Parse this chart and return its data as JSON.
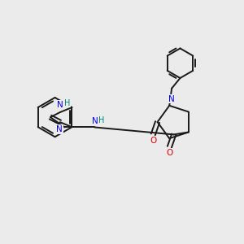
{
  "background_color": "#ebebeb",
  "bond_color": "#1a1a1a",
  "nitrogen_color": "#0000ee",
  "oxygen_color": "#dd0000",
  "nh_color": "#008080",
  "figsize": [
    3.0,
    3.0
  ],
  "dpi": 100,
  "xlim": [
    0,
    10
  ],
  "ylim": [
    0,
    10
  ]
}
